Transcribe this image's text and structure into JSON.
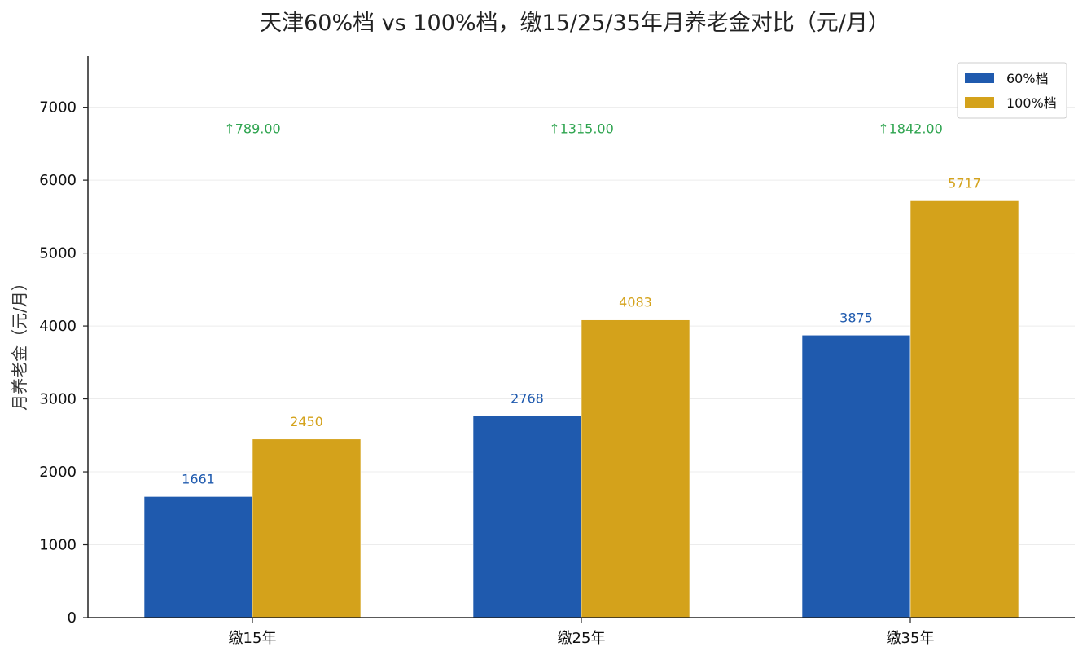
{
  "chart_data": {
    "type": "bar",
    "title": "天津60%档 vs 100%档，缴15/25/35年月养老金对比（元/月）",
    "xlabel": "",
    "ylabel": "月养老金（元/月）",
    "categories": [
      "缴15年",
      "缴25年",
      "缴35年"
    ],
    "series": [
      {
        "name": "60%档",
        "color": "#1f5aae",
        "values": [
          1661,
          2768,
          3875
        ],
        "labels": [
          "1661",
          "2768",
          "3875"
        ]
      },
      {
        "name": "100%档",
        "color": "#d4a21b",
        "values": [
          2450,
          4083,
          5717
        ],
        "labels": [
          "2450",
          "4083",
          "5717"
        ]
      }
    ],
    "differences": {
      "color": "#2ea44f",
      "labels": [
        "↑789.00",
        "↑1315.00",
        "↑1842.00"
      ],
      "y_level": 6700
    },
    "ylim": [
      0,
      7700
    ],
    "yticks": [
      0,
      1000,
      2000,
      3000,
      4000,
      5000,
      6000,
      7000
    ],
    "ytick_labels": [
      "0",
      "1000",
      "2000",
      "3000",
      "4000",
      "5000",
      "6000",
      "7000"
    ],
    "grid": true,
    "legend_position": "top-right"
  }
}
